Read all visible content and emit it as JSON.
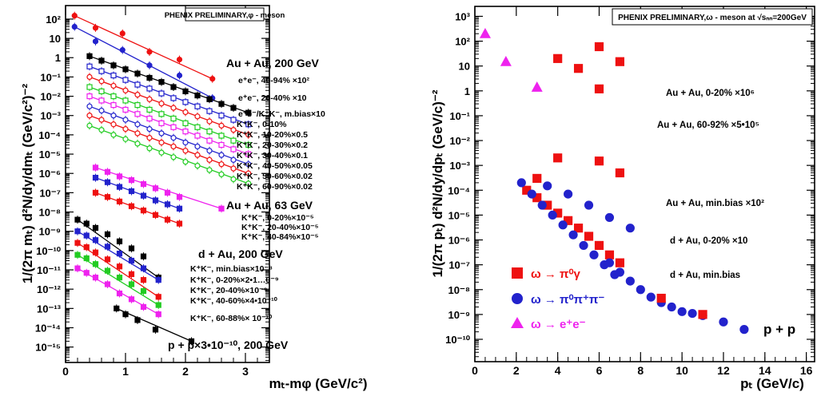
{
  "chart_data": [
    {
      "type": "scatter",
      "banner": "PHENIX PRELIMINARY,φ - meson",
      "xlabel": "mₜ-mφ (GeV/c²)",
      "ylabel": "1/(2π mₜ) d²N/dy/dmₜ (GeV/c²)⁻²",
      "xlim": [
        0,
        3.4
      ],
      "ylim_log10": [
        -15.8,
        2.7
      ],
      "x_ticks": [
        "0",
        "1",
        "2",
        "3"
      ],
      "y_ticks": [
        "10²",
        "10",
        "1",
        "10⁻¹",
        "10⁻²",
        "10⁻³",
        "10⁻⁴",
        "10⁻⁵",
        "10⁻⁶",
        "10⁻⁷",
        "10⁻⁸",
        "10⁻⁹",
        "10⁻¹⁰",
        "10⁻¹¹",
        "10⁻¹²",
        "10⁻¹³",
        "10⁻¹⁴",
        "10⁻¹⁵"
      ],
      "annotations": [
        "Au + Au, 200 GeV",
        "e⁺e⁻, 40-94% ×10²",
        "e⁺e⁻, 20-40% ×10",
        "e⁺e⁻/K⁺K⁻, m.bias×10",
        "K⁺K⁻, 0-10%",
        "K⁺K⁻, 10-20%×0.5",
        "K⁺K⁻, 20-30%×0.2",
        "K⁺K⁻, 30-40%×0.1",
        "K⁺K⁻, 40-50%×0.05",
        "K⁺K⁻, 50-60%×0.02",
        "K⁺K⁻, 60-90%×0.02",
        "Au + Au, 63 GeV",
        "K⁺K⁻, 0-20%×10⁻⁵",
        "K⁺K⁻, 20-40%×10⁻⁵",
        "K⁺K⁻, 40-84%×10⁻⁵",
        "d + Au, 200 GeV",
        "K⁺K⁻, min.bias×10⁻⁸",
        "K⁺K⁻, 0-20%×2•1…0⁻⁹",
        "K⁺K⁻, 20-40%×10⁻⁹",
        "K⁺K⁻, 40-60%×4•10⁻¹⁰",
        "K⁺K⁻, 60-88%× 10⁻¹⁰",
        "p + p×3•10⁻¹⁰, 200 GeV"
      ],
      "series": [
        {
          "color": "#ee1111",
          "marker": "circle",
          "x": [
            0.15,
            0.5,
            0.95,
            1.4,
            1.9,
            2.45
          ],
          "y": [
            150.0,
            35,
            18,
            2,
            0.8,
            0.08
          ]
        },
        {
          "color": "#2222cc",
          "marker": "circle",
          "x": [
            0.15,
            0.5,
            0.95,
            1.4,
            1.9,
            2.45
          ],
          "y": [
            40,
            7,
            2.5,
            0.4,
            0.12,
            0.008
          ]
        },
        {
          "color": "#000000",
          "marker": "square",
          "x": [
            0.4,
            0.6,
            0.8,
            1.0,
            1.2,
            1.4,
            1.6,
            1.8,
            2.0,
            2.2,
            2.4,
            2.6,
            2.8,
            3.05
          ],
          "y": [
            1.2,
            0.7,
            0.4,
            0.25,
            0.15,
            0.09,
            0.055,
            0.03,
            0.018,
            0.011,
            0.007,
            0.004,
            0.0025,
            0.0014
          ]
        },
        {
          "color": "#2222cc",
          "marker": "open-square",
          "x": [
            0.4,
            0.6,
            0.8,
            1.0,
            1.2,
            1.4,
            1.6,
            1.8,
            2.0,
            2.2,
            2.4,
            2.6,
            2.8,
            3.05
          ],
          "y": [
            0.35,
            0.2,
            0.12,
            0.07,
            0.04,
            0.025,
            0.014,
            0.008,
            0.005,
            0.003,
            0.0017,
            0.001,
            0.0006,
            0.00035
          ]
        },
        {
          "color": "#ee1111",
          "marker": "open-circle",
          "x": [
            0.4,
            0.6,
            0.8,
            1.0,
            1.2,
            1.4,
            1.6,
            1.8,
            2.0,
            2.2,
            2.4,
            2.6,
            2.8,
            3.05
          ],
          "y": [
            0.1,
            0.06,
            0.035,
            0.02,
            0.012,
            0.007,
            0.0042,
            0.0025,
            0.0015,
            0.0009,
            0.0005,
            0.0003,
            0.00018,
            0.0001
          ]
        },
        {
          "color": "#22cc22",
          "marker": "open-square",
          "x": [
            0.4,
            0.6,
            0.8,
            1.0,
            1.2,
            1.4,
            1.6,
            1.8,
            2.0,
            2.2,
            2.4,
            2.6,
            2.8,
            3.05
          ],
          "y": [
            0.03,
            0.018,
            0.01,
            0.006,
            0.0035,
            0.002,
            0.0012,
            0.0007,
            0.0004,
            0.00025,
            0.00015,
            9e-05,
            5e-05,
            3e-05
          ]
        },
        {
          "color": "#ee22ee",
          "marker": "open-square",
          "x": [
            0.4,
            0.6,
            0.8,
            1.0,
            1.2,
            1.4,
            1.6,
            1.8,
            2.0,
            2.2,
            2.4,
            2.6,
            2.8,
            3.05
          ],
          "y": [
            0.01,
            0.006,
            0.0035,
            0.002,
            0.0012,
            0.0007,
            0.0004,
            0.00025,
            0.00015,
            9e-05,
            5e-05,
            3e-05,
            1.8e-05,
            1e-05
          ]
        },
        {
          "color": "#2222cc",
          "marker": "open-circle",
          "x": [
            0.4,
            0.6,
            0.8,
            1.0,
            1.2,
            1.4,
            1.6,
            1.8,
            2.0,
            2.2,
            2.4,
            2.6,
            2.8,
            3.05
          ],
          "y": [
            0.003,
            0.0018,
            0.001,
            0.0006,
            0.00035,
            0.0002,
            0.00012,
            7e-05,
            4e-05,
            2.5e-05,
            1.5e-05,
            9e-06,
            5e-06,
            3e-06
          ]
        },
        {
          "color": "#ee1111",
          "marker": "open-circle",
          "x": [
            0.4,
            0.6,
            0.8,
            1.0,
            1.2,
            1.4,
            1.6,
            1.8,
            2.0,
            2.2,
            2.4,
            2.6,
            2.8,
            3.05
          ],
          "y": [
            0.001,
            0.0006,
            0.00035,
            0.0002,
            0.00012,
            7e-05,
            4e-05,
            2.5e-05,
            1.5e-05,
            9e-06,
            5e-06,
            3e-06,
            1.8e-06,
            1e-06
          ]
        },
        {
          "color": "#22cc22",
          "marker": "open-circle",
          "x": [
            0.4,
            0.6,
            0.8,
            1.0,
            1.2,
            1.4,
            1.6,
            1.8,
            2.0,
            2.2,
            2.4,
            2.6,
            2.8,
            3.05
          ],
          "y": [
            0.0003,
            0.00018,
            0.0001,
            6e-05,
            3.5e-05,
            2e-05,
            1.2e-05,
            7e-06,
            4e-06,
            2.5e-06,
            1.5e-06,
            9e-07,
            5e-07,
            3e-07
          ]
        },
        {
          "color": "#ee22ee",
          "marker": "square",
          "x": [
            0.5,
            0.7,
            0.9,
            1.1,
            1.3,
            1.5,
            1.7,
            1.9,
            2.6
          ],
          "y": [
            2e-06,
            1.2e-06,
            7e-07,
            4.5e-07,
            2.8e-07,
            1.7e-07,
            1e-07,
            6e-08,
            1.5e-08
          ]
        },
        {
          "color": "#2222cc",
          "marker": "square",
          "x": [
            0.5,
            0.7,
            0.9,
            1.1,
            1.3,
            1.5,
            1.7,
            1.9
          ],
          "y": [
            6e-07,
            3.5e-07,
            2e-07,
            1.2e-07,
            7e-08,
            4e-08,
            2.5e-08,
            1.5e-08
          ]
        },
        {
          "color": "#ee1111",
          "marker": "square",
          "x": [
            0.5,
            0.7,
            0.9,
            1.1,
            1.3,
            1.5,
            1.7,
            1.9
          ],
          "y": [
            1e-07,
            6e-08,
            3.5e-08,
            2e-08,
            1.2e-08,
            7e-09,
            4e-09,
            2.5e-09
          ]
        },
        {
          "color": "#000000",
          "marker": "square",
          "x": [
            0.2,
            0.35,
            0.5,
            0.7,
            0.9,
            1.1,
            1.3,
            1.55
          ],
          "y": [
            4e-09,
            2.5e-09,
            1.5e-09,
            7e-10,
            3e-10,
            1.3e-10,
            5e-11,
            4e-12
          ]
        },
        {
          "color": "#2222cc",
          "marker": "square",
          "x": [
            0.2,
            0.35,
            0.5,
            0.7,
            0.9,
            1.1,
            1.3,
            1.55
          ],
          "y": [
            1e-09,
            6e-10,
            3.5e-10,
            1.6e-10,
            7e-11,
            3e-11,
            1.2e-11,
            3e-12
          ]
        },
        {
          "color": "#ee1111",
          "marker": "square",
          "x": [
            0.2,
            0.35,
            0.5,
            0.7,
            0.9,
            1.1,
            1.3,
            1.55
          ],
          "y": [
            2.5e-10,
            1.5e-10,
            8e-11,
            3.5e-11,
            1.5e-11,
            6e-12,
            3e-12,
            4e-13
          ]
        },
        {
          "color": "#22cc22",
          "marker": "square",
          "x": [
            0.2,
            0.35,
            0.5,
            0.7,
            0.9,
            1.1,
            1.3,
            1.55
          ],
          "y": [
            6e-11,
            4e-11,
            2e-11,
            9e-12,
            4e-12,
            1.8e-12,
            8e-13,
            1.5e-13
          ]
        },
        {
          "color": "#ee22ee",
          "marker": "square",
          "x": [
            0.2,
            0.35,
            0.5,
            0.7,
            0.9,
            1.1,
            1.3,
            1.55
          ],
          "y": [
            1.2e-11,
            7e-12,
            4e-12,
            1.8e-12,
            6e-13,
            3e-13,
            1.2e-13,
            5e-14
          ]
        },
        {
          "color": "#000000",
          "marker": "square",
          "x": [
            0.85,
            1.0,
            1.2,
            1.5,
            2.1
          ],
          "y": [
            1e-13,
            5e-14,
            2.5e-14,
            8e-15,
            2e-15
          ]
        }
      ]
    },
    {
      "type": "scatter",
      "banner": "PHENIX PRELIMINARY,ω - meson at √sₙₙ=200GeV",
      "xlabel": "pₜ (GeV/c)",
      "ylabel": "1/(2π pₜ) d²N/dy/dpₜ (GeV/c)⁻²",
      "xlim": [
        0,
        16.4
      ],
      "ylim_log10": [
        -10.9,
        3.4
      ],
      "x_ticks": [
        "0",
        "2",
        "4",
        "6",
        "8",
        "10",
        "12",
        "14",
        "16"
      ],
      "y_ticks": [
        "10³",
        "10²",
        "10",
        "1",
        "10⁻¹",
        "10⁻²",
        "10⁻³",
        "10⁻⁴",
        "10⁻⁵",
        "10⁻⁶",
        "10⁻⁷",
        "10⁻⁸",
        "10⁻⁹",
        "10⁻¹⁰"
      ],
      "annotations": [
        "Au + Au, 0-20% ×10⁶",
        "Au + Au, 60-92% ×5•10⁵",
        "Au + Au, min.bias ×10²",
        "d + Au, 0-20% ×10",
        "d + Au, min.bias",
        "p + p"
      ],
      "legend": [
        "ω → π⁰γ",
        "ω → π⁰π⁺π⁻",
        "ω → e⁺e⁻"
      ],
      "series": [
        {
          "color": "#ee1111",
          "marker": "square",
          "x": [
            4,
            5,
            6,
            7
          ],
          "y": [
            20,
            8,
            60,
            15
          ]
        },
        {
          "color": "#ee1111",
          "marker": "square",
          "x": [
            6
          ],
          "y": [
            1.2
          ]
        },
        {
          "color": "#ee1111",
          "marker": "square",
          "x": [
            3,
            4,
            6,
            7
          ],
          "y": [
            0.0003,
            0.002,
            0.0015,
            0.0005
          ]
        },
        {
          "color": "#ee1111",
          "marker": "square",
          "x": [
            2.5,
            3,
            3.5,
            4,
            4.5,
            5,
            5.5,
            6,
            6.5,
            7
          ],
          "y": [
            0.0001,
            5e-05,
            2.5e-05,
            1.2e-05,
            6e-06,
            3e-06,
            1.4e-06,
            6e-07,
            2.5e-07,
            1.2e-07
          ]
        },
        {
          "color": "#2222cc",
          "marker": "circle",
          "x": [
            2.25,
            2.75,
            3.25,
            3.75,
            4.25,
            4.75,
            5.25,
            5.75,
            6.25,
            6.75
          ],
          "y": [
            0.0002,
            7e-05,
            2.5e-05,
            1e-05,
            4e-06,
            1.6e-06,
            6e-07,
            2.5e-07,
            1e-07,
            4e-08
          ]
        },
        {
          "color": "#2222cc",
          "marker": "circle",
          "x": [
            3.5,
            4.5,
            5.5,
            6.5,
            7.5
          ],
          "y": [
            0.00015,
            7e-05,
            2.5e-05,
            8e-06,
            3e-06
          ]
        },
        {
          "color": "#2222cc",
          "marker": "circle",
          "x": [
            6.5,
            7,
            7.5,
            8,
            8.5,
            9,
            9.5,
            10,
            10.5,
            11,
            12,
            13
          ],
          "y": [
            1.2e-07,
            5e-08,
            2.2e-08,
            1e-08,
            5e-09,
            3e-09,
            2e-09,
            1.3e-09,
            1.1e-09,
            9e-10,
            5e-10,
            2.5e-10
          ]
        },
        {
          "color": "#ee1111",
          "marker": "square",
          "x": [
            9,
            11
          ],
          "y": [
            4.5e-09,
            1e-09
          ]
        },
        {
          "color": "#ee22ee",
          "marker": "triangle",
          "x": [
            0.5,
            1.5,
            3
          ],
          "y": [
            200,
            15,
            1.4
          ]
        }
      ]
    }
  ]
}
